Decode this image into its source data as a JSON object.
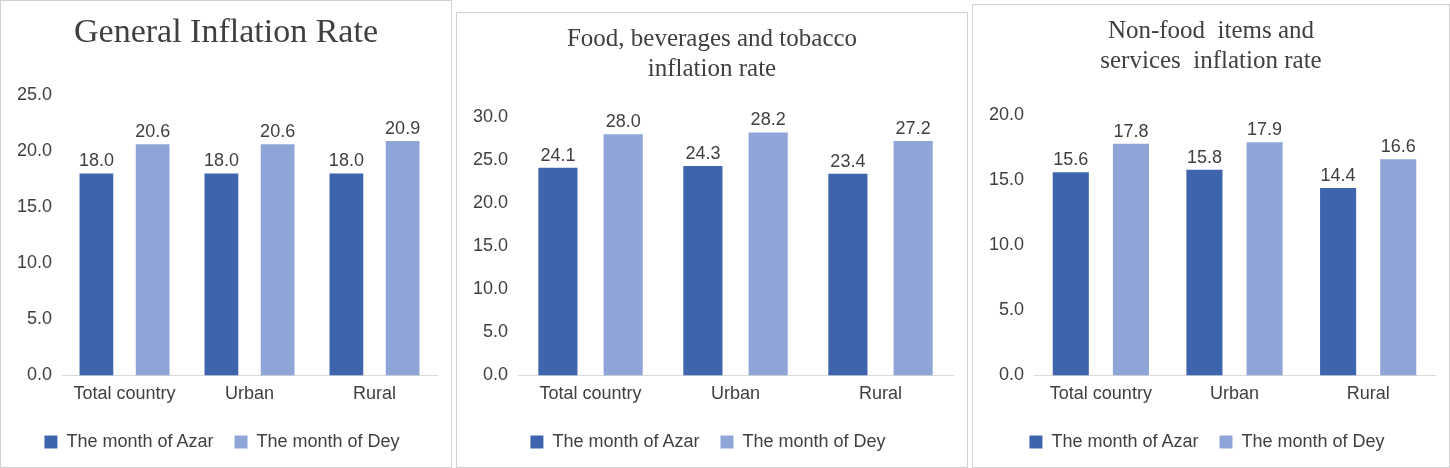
{
  "chart_data": [
    {
      "type": "bar",
      "title": "General Inflation Rate",
      "categories": [
        "Total country",
        "Urban",
        "Rural"
      ],
      "series": [
        {
          "name": "The month of Azar",
          "color": "#3e64ae",
          "values": [
            18.0,
            18.0,
            18.0
          ]
        },
        {
          "name": "The month of Dey",
          "color": "#8fa5d8",
          "values": [
            20.6,
            20.6,
            20.9
          ]
        }
      ],
      "ylim": [
        0,
        25
      ],
      "yticks": [
        {
          "value": 0,
          "label": "0.0"
        },
        {
          "value": 5,
          "label": "5.0"
        },
        {
          "value": 10,
          "label": "10.0"
        },
        {
          "value": 15,
          "label": "15.0"
        },
        {
          "value": 20,
          "label": "20.0"
        },
        {
          "value": 25,
          "label": "25.0"
        }
      ],
      "grid": false,
      "legend": "bottom",
      "value_labels": [
        [
          "18.0",
          "18.0",
          "18.0"
        ],
        [
          "20.6",
          "20.6",
          "20.9"
        ]
      ]
    },
    {
      "type": "bar",
      "title": "Food, beverages and tobacco inflation rate",
      "categories": [
        "Total country",
        "Urban",
        "Rural"
      ],
      "series": [
        {
          "name": "The month of Azar",
          "color": "#3e64ae",
          "values": [
            24.1,
            24.3,
            23.4
          ]
        },
        {
          "name": "The month of Dey",
          "color": "#8fa5d8",
          "values": [
            28.0,
            28.2,
            27.2
          ]
        }
      ],
      "ylim": [
        0,
        30
      ],
      "yticks": [
        {
          "value": 0,
          "label": "0.0"
        },
        {
          "value": 5,
          "label": "5.0"
        },
        {
          "value": 10,
          "label": "10.0"
        },
        {
          "value": 15,
          "label": "15.0"
        },
        {
          "value": 20,
          "label": "20.0"
        },
        {
          "value": 25,
          "label": "25.0"
        },
        {
          "value": 30,
          "label": "30.0"
        }
      ],
      "grid": false,
      "legend": "bottom",
      "value_labels": [
        [
          "24.1",
          "24.3",
          "23.4"
        ],
        [
          "28.0",
          "28.2",
          "27.2"
        ]
      ]
    },
    {
      "type": "bar",
      "title": "Non-food  items and services  inflation rate",
      "categories": [
        "Total country",
        "Urban",
        "Rural"
      ],
      "series": [
        {
          "name": "The month of Azar",
          "color": "#3e64ae",
          "values": [
            15.6,
            15.8,
            14.4
          ]
        },
        {
          "name": "The month of Dey",
          "color": "#8fa5d8",
          "values": [
            17.8,
            17.9,
            16.6
          ]
        }
      ],
      "ylim": [
        0,
        20
      ],
      "yticks": [
        {
          "value": 0,
          "label": "0.0"
        },
        {
          "value": 5,
          "label": "5.0"
        },
        {
          "value": 10,
          "label": "10.0"
        },
        {
          "value": 15,
          "label": "15.0"
        },
        {
          "value": 20,
          "label": "20.0"
        }
      ],
      "grid": false,
      "legend": "bottom",
      "value_labels": [
        [
          "15.6",
          "15.8",
          "14.4"
        ],
        [
          "17.8",
          "17.9",
          "16.6"
        ]
      ]
    }
  ]
}
